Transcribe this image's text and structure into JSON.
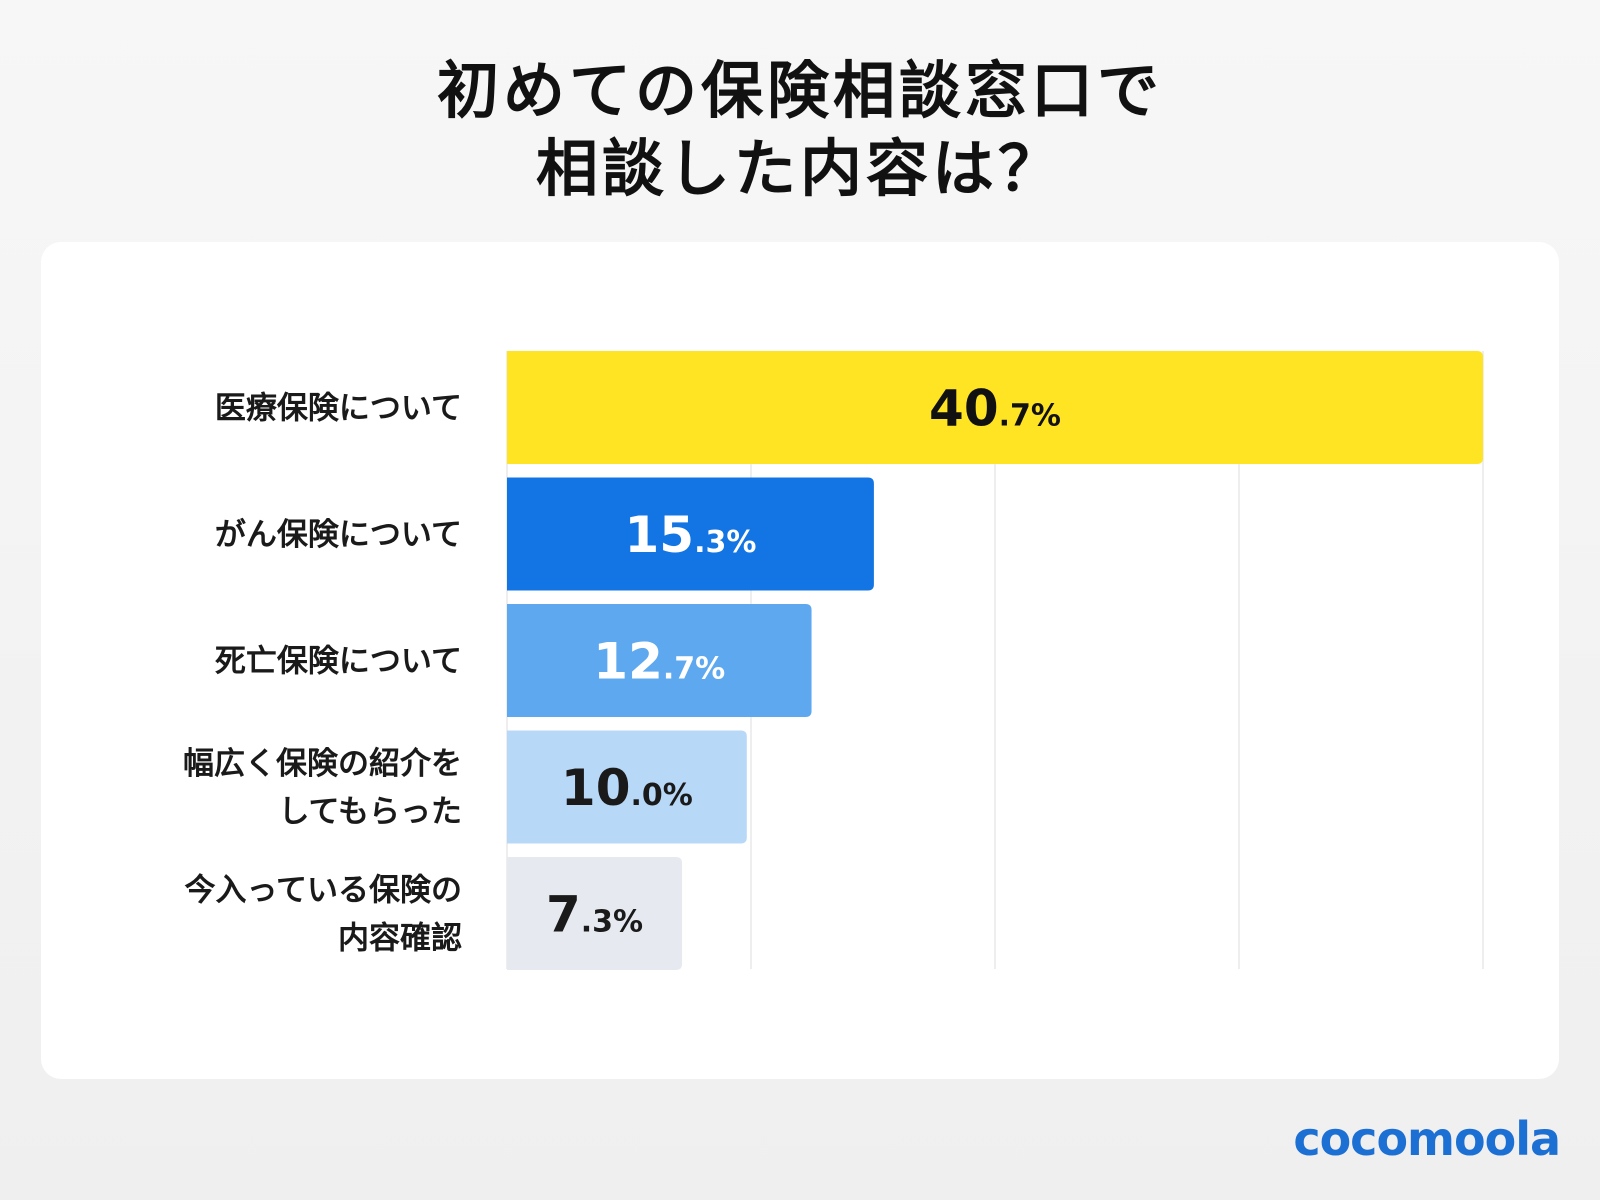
{
  "title_lines": [
    "初めての保険相談窓口で",
    "相談した内容は？"
  ],
  "logo": "cocomoola",
  "chart_data": {
    "type": "bar",
    "orientation": "horizontal",
    "title": "初めての保険相談窓口で相談した内容は？",
    "unit": "%",
    "categories": [
      [
        "医療保険について"
      ],
      [
        "がん保険について"
      ],
      [
        "死亡保険について"
      ],
      [
        "幅広く保険の紹介を",
        "してもらった"
      ],
      [
        "今入っている保険の",
        "内容確認"
      ]
    ],
    "values": [
      40.7,
      15.3,
      12.7,
      10.0,
      7.3
    ],
    "xlim": [
      0,
      40.7
    ],
    "grid": true,
    "bar_colors": [
      "#FFE423",
      "#1374E4",
      "#5EA8F0",
      "#B8D8F8",
      "#E6EAF0"
    ],
    "label_colors": [
      "#111111",
      "#ffffff",
      "#ffffff",
      "#1a1a1a",
      "#1a1a1a"
    ]
  }
}
